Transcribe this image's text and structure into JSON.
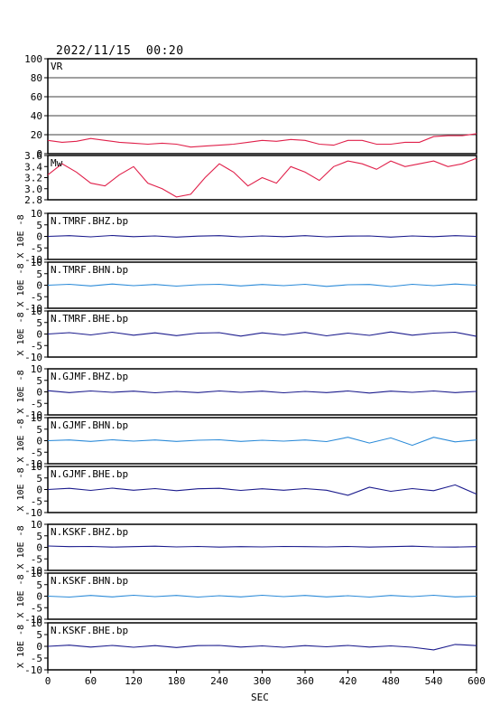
{
  "header": {
    "timestamp": "2022/11/15  00:20"
  },
  "chart_data": {
    "type": "line",
    "xlabel": "SEC",
    "xlim": [
      0,
      600
    ],
    "xticks": [
      0,
      60,
      120,
      180,
      240,
      300,
      360,
      420,
      480,
      540,
      600
    ],
    "panels": [
      {
        "name": "VR",
        "ylim": [
          0,
          100
        ],
        "yticks": [
          0,
          20,
          40,
          60,
          80,
          100
        ],
        "ytick_labels": [
          "0",
          "20",
          "40",
          "60",
          "80",
          "100"
        ],
        "grid": true,
        "color": "#e0204a",
        "x": [
          0,
          20,
          40,
          60,
          80,
          100,
          120,
          140,
          160,
          180,
          200,
          220,
          240,
          260,
          280,
          300,
          320,
          340,
          360,
          380,
          400,
          420,
          440,
          460,
          480,
          500,
          520,
          540,
          560,
          580,
          600
        ],
        "values": [
          14,
          12,
          13,
          16,
          14,
          12,
          11,
          10,
          11,
          10,
          7,
          8,
          9,
          10,
          12,
          14,
          13,
          15,
          14,
          10,
          9,
          14,
          14,
          10,
          10,
          12,
          12,
          18,
          19,
          19,
          21
        ]
      },
      {
        "name": "Mw",
        "ylim": [
          2.8,
          3.6
        ],
        "yticks": [
          2.8,
          3.0,
          3.2,
          3.4,
          3.6
        ],
        "ytick_labels": [
          "2.8",
          "3.0",
          "3.2",
          "3.4",
          "3.6"
        ],
        "grid": false,
        "color": "#e0204a",
        "x": [
          0,
          20,
          40,
          60,
          80,
          100,
          120,
          140,
          160,
          180,
          200,
          220,
          240,
          260,
          280,
          300,
          320,
          340,
          360,
          380,
          400,
          420,
          440,
          460,
          480,
          500,
          520,
          540,
          560,
          580,
          600
        ],
        "values": [
          3.25,
          3.45,
          3.3,
          3.1,
          3.05,
          3.25,
          3.4,
          3.1,
          3.0,
          2.85,
          2.9,
          3.2,
          3.45,
          3.3,
          3.05,
          3.2,
          3.1,
          3.4,
          3.3,
          3.15,
          3.4,
          3.5,
          3.45,
          3.35,
          3.5,
          3.4,
          3.45,
          3.5,
          3.4,
          3.45,
          3.55
        ]
      },
      {
        "name": "N.TMRF.BHZ.bp",
        "ylim": [
          -10,
          10
        ],
        "yticks": [
          -10,
          -5,
          0,
          5,
          10
        ],
        "ytick_labels": [
          "-10",
          "-5",
          "0",
          "5",
          "10"
        ],
        "grid": false,
        "color": "#1a1a8c",
        "x": [
          0,
          30,
          60,
          90,
          120,
          150,
          180,
          210,
          240,
          270,
          300,
          330,
          360,
          390,
          420,
          450,
          480,
          510,
          540,
          570,
          600
        ],
        "values": [
          0,
          0.3,
          -0.2,
          0.4,
          -0.1,
          0.2,
          -0.3,
          0.1,
          0.3,
          -0.2,
          0.2,
          -0.1,
          0.3,
          -0.2,
          0.1,
          0.2,
          -0.3,
          0.2,
          -0.1,
          0.3,
          0
        ]
      },
      {
        "name": "N.TMRF.BHN.bp",
        "ylim": [
          -10,
          10
        ],
        "yticks": [
          -10,
          -5,
          0,
          5,
          10
        ],
        "ytick_labels": [
          "-10",
          "-5",
          "0",
          "5",
          "10"
        ],
        "grid": false,
        "color": "#2a8ad8",
        "x": [
          0,
          30,
          60,
          90,
          120,
          150,
          180,
          210,
          240,
          270,
          300,
          330,
          360,
          390,
          420,
          450,
          480,
          510,
          540,
          570,
          600
        ],
        "values": [
          0,
          0.4,
          -0.3,
          0.5,
          -0.2,
          0.3,
          -0.4,
          0.2,
          0.4,
          -0.3,
          0.3,
          -0.2,
          0.4,
          -0.5,
          0.2,
          0.3,
          -0.6,
          0.4,
          -0.2,
          0.5,
          0
        ]
      },
      {
        "name": "N.TMRF.BHE.bp",
        "ylim": [
          -10,
          10
        ],
        "yticks": [
          -10,
          -5,
          0,
          5,
          10
        ],
        "ytick_labels": [
          "-10",
          "-5",
          "0",
          "5",
          "10"
        ],
        "grid": false,
        "color": "#1a1a8c",
        "x": [
          0,
          30,
          60,
          90,
          120,
          150,
          180,
          210,
          240,
          270,
          300,
          330,
          360,
          390,
          420,
          450,
          480,
          510,
          540,
          570,
          600
        ],
        "values": [
          0,
          0.6,
          -0.4,
          0.8,
          -0.5,
          0.5,
          -0.7,
          0.4,
          0.6,
          -0.9,
          0.5,
          -0.4,
          0.7,
          -0.8,
          0.4,
          -0.6,
          0.9,
          -0.5,
          0.4,
          0.8,
          -1.0
        ]
      },
      {
        "name": "N.GJMF.BHZ.bp",
        "ylim": [
          -10,
          10
        ],
        "yticks": [
          -10,
          -5,
          0,
          5,
          10
        ],
        "ytick_labels": [
          "-10",
          "-5",
          "0",
          "5",
          "10"
        ],
        "grid": false,
        "color": "#1a1a8c",
        "x": [
          0,
          30,
          60,
          90,
          120,
          150,
          180,
          210,
          240,
          270,
          300,
          330,
          360,
          390,
          420,
          450,
          480,
          510,
          540,
          570,
          600
        ],
        "values": [
          0.5,
          -0.3,
          0.4,
          -0.2,
          0.3,
          -0.4,
          0.2,
          -0.3,
          0.4,
          -0.2,
          0.3,
          -0.4,
          0.2,
          -0.3,
          0.4,
          -0.5,
          0.3,
          -0.2,
          0.4,
          -0.3,
          0.2
        ]
      },
      {
        "name": "N.GJMF.BHN.bp",
        "ylim": [
          -10,
          10
        ],
        "yticks": [
          -10,
          -5,
          0,
          5,
          10
        ],
        "ytick_labels": [
          "-10",
          "-5",
          "0",
          "5",
          "10"
        ],
        "grid": false,
        "color": "#2a8ad8",
        "x": [
          0,
          30,
          60,
          90,
          120,
          150,
          180,
          210,
          240,
          270,
          300,
          330,
          360,
          390,
          420,
          450,
          480,
          510,
          540,
          570,
          600
        ],
        "values": [
          0,
          0.3,
          -0.3,
          0.4,
          -0.2,
          0.3,
          -0.3,
          0.2,
          0.4,
          -0.3,
          0.2,
          -0.2,
          0.3,
          -0.4,
          1.5,
          -1.0,
          1.2,
          -2.0,
          1.5,
          -0.5,
          0.3
        ]
      },
      {
        "name": "N.GJMF.BHE.bp",
        "ylim": [
          -10,
          10
        ],
        "yticks": [
          -10,
          -5,
          0,
          5,
          10
        ],
        "ytick_labels": [
          "-10",
          "-5",
          "0",
          "5",
          "10"
        ],
        "grid": false,
        "color": "#1a1a8c",
        "x": [
          0,
          30,
          60,
          90,
          120,
          150,
          180,
          210,
          240,
          270,
          300,
          330,
          360,
          390,
          420,
          450,
          480,
          510,
          540,
          570,
          600
        ],
        "values": [
          0,
          0.5,
          -0.4,
          0.6,
          -0.3,
          0.4,
          -0.5,
          0.3,
          0.5,
          -0.4,
          0.3,
          -0.3,
          0.4,
          -0.3,
          -2.5,
          1.0,
          -0.8,
          0.4,
          -0.5,
          2.0,
          -2.0
        ]
      },
      {
        "name": "N.KSKF.BHZ.bp",
        "ylim": [
          -10,
          10
        ],
        "yticks": [
          -10,
          -5,
          0,
          5,
          10
        ],
        "ytick_labels": [
          "-10",
          "-5",
          "0",
          "5",
          "10"
        ],
        "grid": false,
        "color": "#1a1a8c",
        "x": [
          0,
          30,
          60,
          90,
          120,
          150,
          180,
          210,
          240,
          270,
          300,
          330,
          360,
          390,
          420,
          450,
          480,
          510,
          540,
          570,
          600
        ],
        "values": [
          0.6,
          0.3,
          0.4,
          0.1,
          0.3,
          0.5,
          0.2,
          0.4,
          0.1,
          0.3,
          0.2,
          0.4,
          0.3,
          0.2,
          0.4,
          0.1,
          0.3,
          0.5,
          0.2,
          0.1,
          0.3
        ]
      },
      {
        "name": "N.KSKF.BHN.bp",
        "ylim": [
          -10,
          10
        ],
        "yticks": [
          -10,
          -5,
          0,
          5,
          10
        ],
        "ytick_labels": [
          "-10",
          "-5",
          "0",
          "5",
          "10"
        ],
        "grid": false,
        "color": "#2a8ad8",
        "x": [
          0,
          30,
          60,
          90,
          120,
          150,
          180,
          210,
          240,
          270,
          300,
          330,
          360,
          390,
          420,
          450,
          480,
          510,
          540,
          570,
          600
        ],
        "values": [
          0,
          -0.4,
          0.3,
          -0.3,
          0.4,
          -0.2,
          0.3,
          -0.4,
          0.2,
          -0.3,
          0.4,
          -0.2,
          0.3,
          -0.3,
          0.2,
          -0.4,
          0.3,
          -0.2,
          0.4,
          -0.3,
          0
        ]
      },
      {
        "name": "N.KSKF.BHE.bp",
        "ylim": [
          -10,
          10
        ],
        "yticks": [
          -10,
          -5,
          0,
          5,
          10
        ],
        "ytick_labels": [
          "-10",
          "-5",
          "0",
          "5",
          "10"
        ],
        "grid": false,
        "color": "#1a1a8c",
        "x": [
          0,
          30,
          60,
          90,
          120,
          150,
          180,
          210,
          240,
          270,
          300,
          330,
          360,
          390,
          420,
          450,
          480,
          510,
          540,
          570,
          600
        ],
        "values": [
          0,
          0.5,
          -0.3,
          0.4,
          -0.4,
          0.3,
          -0.5,
          0.3,
          0.4,
          -0.3,
          0.2,
          -0.4,
          0.3,
          -0.2,
          0.4,
          -0.3,
          0.2,
          -0.4,
          -1.5,
          0.8,
          0.3
        ]
      }
    ],
    "seismo_ylabel": "X 10E -8"
  }
}
